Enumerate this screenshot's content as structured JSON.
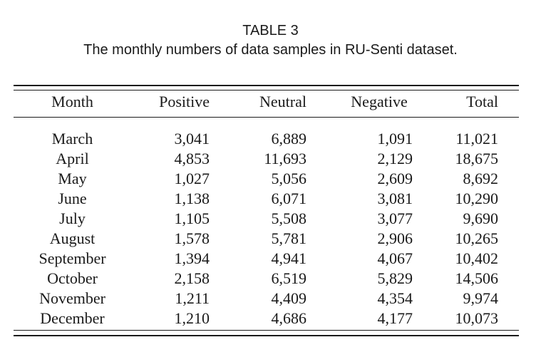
{
  "caption": {
    "label": "TABLE 3",
    "text": "The monthly numbers of data samples in RU-Senti dataset."
  },
  "table": {
    "headers": {
      "month": "Month",
      "positive": "Positive",
      "neutral": "Neutral",
      "negative": "Negative",
      "total": "Total"
    },
    "rows": [
      {
        "month": "March",
        "positive": "3,041",
        "neutral": "6,889",
        "negative": "1,091",
        "total": "11,021"
      },
      {
        "month": "April",
        "positive": "4,853",
        "neutral": "11,693",
        "negative": "2,129",
        "total": "18,675"
      },
      {
        "month": "May",
        "positive": "1,027",
        "neutral": "5,056",
        "negative": "2,609",
        "total": "8,692"
      },
      {
        "month": "June",
        "positive": "1,138",
        "neutral": "6,071",
        "negative": "3,081",
        "total": "10,290"
      },
      {
        "month": "July",
        "positive": "1,105",
        "neutral": "5,508",
        "negative": "3,077",
        "total": "9,690"
      },
      {
        "month": "August",
        "positive": "1,578",
        "neutral": "5,781",
        "negative": "2,906",
        "total": "10,265"
      },
      {
        "month": "September",
        "positive": "1,394",
        "neutral": "4,941",
        "negative": "4,067",
        "total": "10,402"
      },
      {
        "month": "October",
        "positive": "2,158",
        "neutral": "6,519",
        "negative": "5,829",
        "total": "14,506"
      },
      {
        "month": "November",
        "positive": "1,211",
        "neutral": "4,409",
        "negative": "4,354",
        "total": "9,974"
      },
      {
        "month": "December",
        "positive": "1,210",
        "neutral": "4,686",
        "negative": "4,177",
        "total": "10,073"
      }
    ]
  }
}
